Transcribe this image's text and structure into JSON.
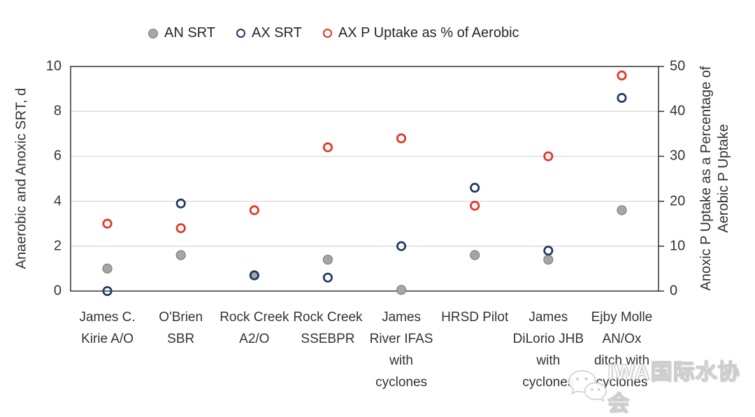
{
  "colors": {
    "an_srt_fill": "#A6A6A6",
    "an_srt_stroke": "#7F7F7F",
    "ax_srt_stroke": "#1F3864",
    "ax_p_stroke": "#E63323",
    "gridline": "#D9D9D9",
    "axis_line": "#262626",
    "text": "#333333"
  },
  "chart_data": {
    "type": "scatter",
    "title": "",
    "legend_position": "top",
    "grid": true,
    "categories": [
      "James C. Kirie A/O",
      "O'Brien SBR",
      "Rock Creek A2/O",
      "Rock Creek SSEBPR",
      "James River IFAS with cyclones",
      "HRSD Pilot",
      "James DiLorio JHB with cyclones",
      "Ejby Molle AN/Ox ditch with cyclones"
    ],
    "category_label_lines": [
      [
        "James C.",
        "Kirie A/O"
      ],
      [
        "O'Brien",
        "SBR"
      ],
      [
        "Rock Creek",
        "A2/O"
      ],
      [
        "Rock Creek",
        "SSEBPR"
      ],
      [
        "James",
        "River IFAS",
        "with",
        "cyclones"
      ],
      [
        "HRSD Pilot"
      ],
      [
        "James",
        "DiLorio JHB",
        "with",
        "cyclones"
      ],
      [
        "Ejby Molle",
        "AN/Ox",
        "ditch with",
        "cyclones"
      ]
    ],
    "series": [
      {
        "name": "AN SRT",
        "axis": "left",
        "marker": "filled-gray",
        "values": [
          1.0,
          1.6,
          0.7,
          1.4,
          0.05,
          1.6,
          1.4,
          3.6
        ]
      },
      {
        "name": "AX SRT",
        "axis": "left",
        "marker": "open-navy",
        "values": [
          0.0,
          3.9,
          0.7,
          0.6,
          2.0,
          4.6,
          1.8,
          8.6
        ]
      },
      {
        "name": "AX P Uptake as % of Aerobic",
        "axis": "right",
        "marker": "open-red",
        "values": [
          15,
          14,
          18,
          32,
          34,
          19,
          30,
          48
        ]
      }
    ],
    "left_axis": {
      "title": "Anaerobic and Anoxic SRT, d",
      "min": 0,
      "max": 10,
      "ticks": [
        0,
        2,
        4,
        6,
        8,
        10
      ]
    },
    "right_axis": {
      "title_lines": [
        "Anoxic P Uptake as a Percentage of",
        "Aerobic P Uptake"
      ],
      "min": 0,
      "max": 50,
      "ticks": [
        0,
        10,
        20,
        30,
        40,
        50
      ]
    }
  },
  "watermark": {
    "icon": "wechat-icon",
    "text": "IWA国际水协会"
  }
}
